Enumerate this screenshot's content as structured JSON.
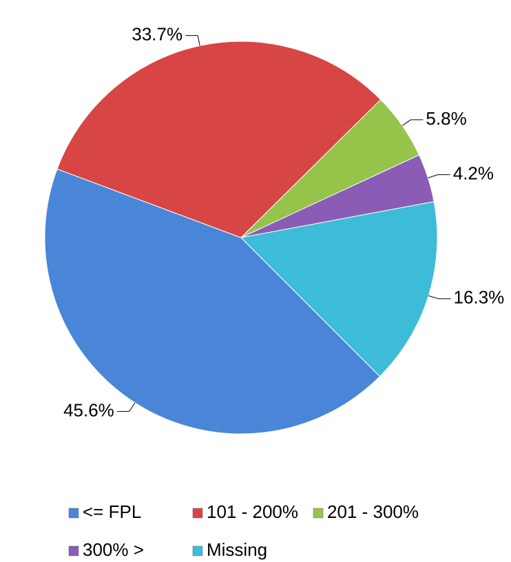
{
  "chart_data": {
    "type": "pie",
    "categories": [
      "<= FPL",
      "101 - 200%",
      "201 - 300%",
      "300% >",
      "Missing"
    ],
    "values": [
      45.6,
      33.7,
      5.8,
      4.2,
      16.3
    ],
    "value_labels": [
      "45.6%",
      "33.7%",
      "5.8%",
      "4.2%",
      "16.3%"
    ],
    "colors": [
      "#4a86d8",
      "#d74544",
      "#96c44a",
      "#8a5cb5",
      "#3cbcd8"
    ],
    "legend": "bottom"
  }
}
